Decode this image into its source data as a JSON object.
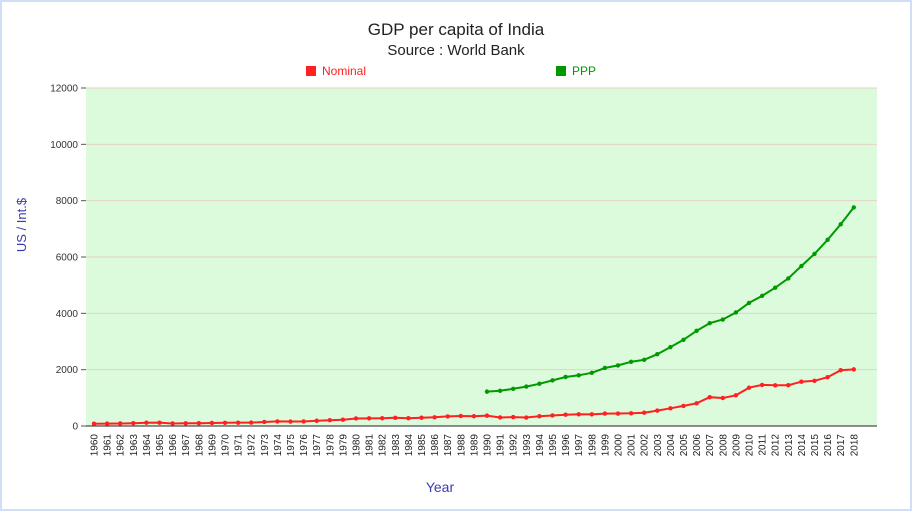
{
  "colors": {
    "nominal": "#ff2020",
    "ppp": "#009a00",
    "plot_bg": "#dcfadc",
    "axis_title": "#3b3bb5"
  },
  "chart_data": {
    "type": "line",
    "title": "GDP per capita of India",
    "subtitle": "Source : World Bank",
    "xlabel": "Year",
    "ylabel": "US / Int.$",
    "ylim": [
      0,
      12000
    ],
    "yticks": [
      0,
      2000,
      4000,
      6000,
      8000,
      10000,
      12000
    ],
    "categories": [
      "1960",
      "1961",
      "1962",
      "1963",
      "1964",
      "1965",
      "1966",
      "1967",
      "1968",
      "1969",
      "1970",
      "1971",
      "1972",
      "1973",
      "1974",
      "1975",
      "1976",
      "1977",
      "1978",
      "1979",
      "1980",
      "1981",
      "1982",
      "1983",
      "1984",
      "1985",
      "1986",
      "1987",
      "1988",
      "1989",
      "1990",
      "1991",
      "1992",
      "1993",
      "1994",
      "1995",
      "1996",
      "1997",
      "1998",
      "1999",
      "2000",
      "2001",
      "2002",
      "2003",
      "2004",
      "2005",
      "2006",
      "2007",
      "2008",
      "2009",
      "2010",
      "2011",
      "2012",
      "2013",
      "2014",
      "2015",
      "2016",
      "2017",
      "2018"
    ],
    "series": [
      {
        "name": "Nominal",
        "color": "#ff2020",
        "values": [
          82,
          85,
          90,
          101,
          116,
          119,
          90,
          96,
          99,
          107,
          112,
          119,
          122,
          143,
          163,
          158,
          161,
          186,
          206,
          224,
          267,
          271,
          275,
          292,
          277,
          296,
          310,
          340,
          355,
          346,
          368,
          303,
          317,
          301,
          346,
          374,
          400,
          415,
          413,
          442,
          443,
          452,
          471,
          547,
          628,
          714,
          807,
          1023,
          994,
          1090,
          1358,
          1458,
          1444,
          1450,
          1574,
          1606,
          1733,
          1981,
          2010
        ]
      },
      {
        "name": "PPP",
        "color": "#009a00",
        "values": [
          null,
          null,
          null,
          null,
          null,
          null,
          null,
          null,
          null,
          null,
          null,
          null,
          null,
          null,
          null,
          null,
          null,
          null,
          null,
          null,
          null,
          null,
          null,
          null,
          null,
          null,
          null,
          null,
          null,
          null,
          1220,
          1250,
          1320,
          1400,
          1500,
          1620,
          1740,
          1800,
          1890,
          2060,
          2150,
          2280,
          2350,
          2550,
          2800,
          3060,
          3380,
          3650,
          3780,
          4030,
          4370,
          4620,
          4910,
          5240,
          5680,
          6110,
          6610,
          7160,
          7760
        ]
      }
    ]
  }
}
